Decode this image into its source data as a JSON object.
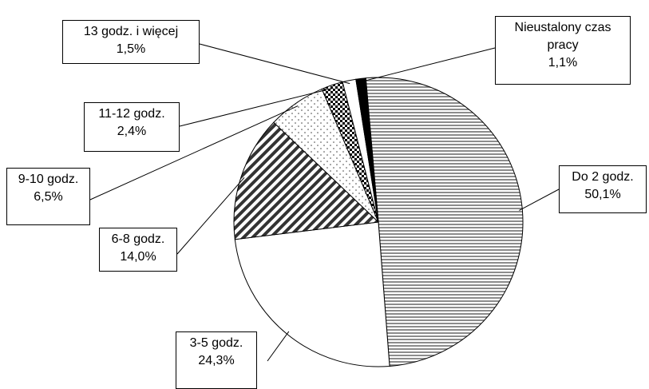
{
  "chart_data": {
    "type": "pie",
    "categories": [
      "Do 2 godz.",
      "3-5 godz.",
      "6-8 godz.",
      "9-10 godz.",
      "11-12 godz.",
      "13 godz. i więcej",
      "Nieustalony czas pracy"
    ],
    "values": [
      50.1,
      24.3,
      14.0,
      6.5,
      2.4,
      1.5,
      1.1
    ],
    "value_labels": [
      "50,1%",
      "24,3%",
      "14,0%",
      "6,5%",
      "2,4%",
      "1,5%",
      "1,1%"
    ],
    "patterns": [
      "hstripes",
      "none",
      "diagonal",
      "dots",
      "checker",
      "none",
      "solid"
    ]
  }
}
